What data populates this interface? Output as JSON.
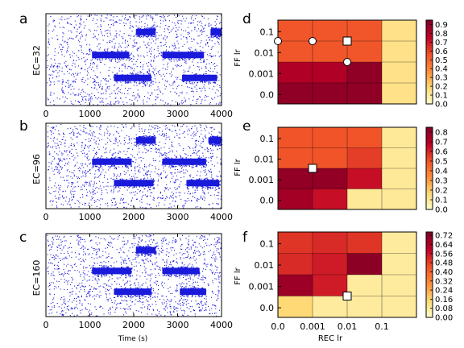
{
  "figure": {
    "panels": [
      {
        "letter": "a",
        "ylabel": "EC=32"
      },
      {
        "letter": "b",
        "ylabel": "EC=96"
      },
      {
        "letter": "c",
        "ylabel": "EC=160"
      },
      {
        "letter": "d",
        "ylabel": "FF lr"
      },
      {
        "letter": "e",
        "ylabel": "FF lr"
      },
      {
        "letter": "f",
        "ylabel": "FF lr"
      }
    ],
    "raster_xlabel": "Time (s)",
    "heatmap_xlabel": "REC lr"
  },
  "chart_data": [
    {
      "type": "scatter",
      "panel": "a",
      "ylabel": "EC=32",
      "xlim": [
        0,
        4000
      ],
      "xticks": [
        "0",
        "1000",
        "2000",
        "3000",
        "4000"
      ],
      "background_dot_color": "#1a1adb",
      "bursts": [
        {
          "row": 0.8,
          "x": [
            2050,
            2500
          ]
        },
        {
          "row": 0.8,
          "x": [
            3750,
            4000
          ]
        },
        {
          "row": 0.55,
          "x": [
            1050,
            1900
          ]
        },
        {
          "row": 0.55,
          "x": [
            2650,
            3600
          ]
        },
        {
          "row": 0.3,
          "x": [
            1550,
            2400
          ]
        },
        {
          "row": 0.3,
          "x": [
            3100,
            3900
          ]
        }
      ]
    },
    {
      "type": "scatter",
      "panel": "b",
      "ylabel": "EC=96",
      "xlim": [
        0,
        4000
      ],
      "xticks": [
        "0",
        "1000",
        "2000",
        "3000",
        "4000"
      ],
      "bursts": [
        {
          "row": 0.8,
          "x": [
            2050,
            2500
          ]
        },
        {
          "row": 0.8,
          "x": [
            3700,
            4000
          ]
        },
        {
          "row": 0.55,
          "x": [
            1050,
            1950
          ]
        },
        {
          "row": 0.55,
          "x": [
            2650,
            3650
          ]
        },
        {
          "row": 0.3,
          "x": [
            1550,
            2450
          ]
        },
        {
          "row": 0.3,
          "x": [
            3200,
            3950
          ]
        }
      ]
    },
    {
      "type": "scatter",
      "panel": "c",
      "ylabel": "EC=160",
      "xlim": [
        0,
        4000
      ],
      "xticks": [
        "0",
        "1000",
        "2000",
        "3000",
        "4000"
      ],
      "xlabel": "Time (s)",
      "bursts": [
        {
          "row": 0.8,
          "x": [
            2050,
            2500
          ]
        },
        {
          "row": 0.55,
          "x": [
            1050,
            1950
          ]
        },
        {
          "row": 0.55,
          "x": [
            2650,
            3500
          ]
        },
        {
          "row": 0.3,
          "x": [
            1550,
            2400
          ]
        },
        {
          "row": 0.3,
          "x": [
            3050,
            3650
          ]
        }
      ]
    },
    {
      "type": "heatmap",
      "panel": "d",
      "ylabel": "FF lr",
      "x_categories": [
        "0.0",
        "0.001",
        "0.01",
        "0.1"
      ],
      "y_categories": [
        "0.0",
        "0.001",
        "0.01",
        "0.1"
      ],
      "yticks": [
        "0.1",
        "0.01",
        "0.001",
        "0.0"
      ],
      "values": [
        [
          0.55,
          0.55,
          0.55,
          0.15
        ],
        [
          0.55,
          0.55,
          0.55,
          0.15
        ],
        [
          0.8,
          0.8,
          0.9,
          0.15
        ],
        [
          0.9,
          0.9,
          0.9,
          0.15
        ]
      ],
      "colorbar": {
        "min": 0.0,
        "max": 0.95,
        "ticks": [
          "0.0",
          "0.1",
          "0.2",
          "0.3",
          "0.4",
          "0.5",
          "0.6",
          "0.7",
          "0.8",
          "0.9"
        ]
      },
      "markers": [
        {
          "shape": "circle",
          "x": 0,
          "y": 3.0
        },
        {
          "shape": "circle",
          "x": 1,
          "y": 3.0
        },
        {
          "shape": "square",
          "x": 2,
          "y": 3.0
        },
        {
          "shape": "circle",
          "x": 2,
          "y": 2.0
        }
      ]
    },
    {
      "type": "heatmap",
      "panel": "e",
      "ylabel": "FF lr",
      "x_categories": [
        "0.0",
        "0.001",
        "0.01",
        "0.1"
      ],
      "y_categories": [
        "0.0",
        "0.001",
        "0.01",
        "0.1"
      ],
      "yticks": [
        "0.1",
        "0.01",
        "0.001",
        "0.0"
      ],
      "values": [
        [
          0.5,
          0.5,
          0.5,
          0.1
        ],
        [
          0.5,
          0.5,
          0.55,
          0.1
        ],
        [
          0.8,
          0.8,
          0.65,
          0.1
        ],
        [
          0.75,
          0.65,
          0.1,
          0.1
        ]
      ],
      "colorbar": {
        "min": 0.0,
        "max": 0.85,
        "ticks": [
          "0.0",
          "0.1",
          "0.2",
          "0.3",
          "0.4",
          "0.5",
          "0.6",
          "0.7",
          "0.8"
        ]
      },
      "markers": [
        {
          "shape": "square",
          "x": 1,
          "y": 2.0
        }
      ]
    },
    {
      "type": "heatmap",
      "panel": "f",
      "ylabel": "FF lr",
      "x_categories": [
        "0.0",
        "0.001",
        "0.01",
        "0.1"
      ],
      "y_categories": [
        "0.0",
        "0.001",
        "0.01",
        "0.1"
      ],
      "yticks": [
        "0.1",
        "0.01",
        "0.001",
        "0.0"
      ],
      "xticks": [
        "0.0",
        "0.001",
        "0.01",
        "0.1"
      ],
      "xlabel": "REC lr",
      "values": [
        [
          0.5,
          0.52,
          0.5,
          0.08
        ],
        [
          0.52,
          0.55,
          0.72,
          0.08
        ],
        [
          0.68,
          0.55,
          0.08,
          0.08
        ],
        [
          0.15,
          0.08,
          0.08,
          0.08
        ]
      ],
      "colorbar": {
        "min": 0.0,
        "max": 0.75,
        "ticks": [
          "0.00",
          "0.08",
          "0.16",
          "0.24",
          "0.32",
          "0.40",
          "0.48",
          "0.56",
          "0.64",
          "0.72"
        ]
      },
      "markers": [
        {
          "shape": "square",
          "x": 2,
          "y": 1.0
        }
      ]
    }
  ]
}
